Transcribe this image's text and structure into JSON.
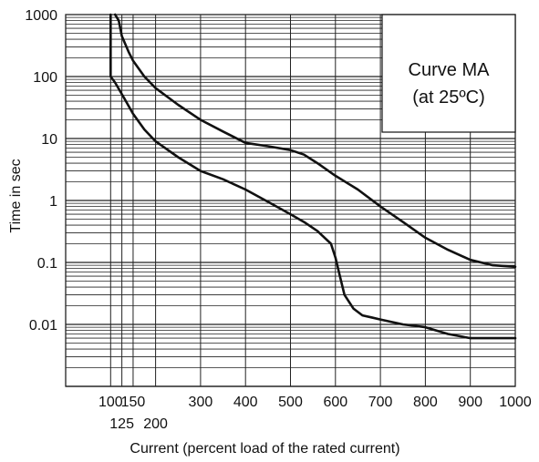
{
  "chart_data": {
    "type": "line",
    "xlabel": "Current (percent load of the rated current)",
    "ylabel": "Time in sec",
    "xlim": [
      0,
      1000
    ],
    "ylim": [
      0.001,
      1000
    ],
    "yscale": "log",
    "annotation": [
      "Curve MA",
      "(at 25ºC)"
    ],
    "x_ticks": [
      {
        "value": 100,
        "label": "100",
        "row": 1
      },
      {
        "value": 125,
        "label": "125",
        "row": 2
      },
      {
        "value": 150,
        "label": "150",
        "row": 1
      },
      {
        "value": 200,
        "label": "200",
        "row": 2
      },
      {
        "value": 300,
        "label": "300",
        "row": 1
      },
      {
        "value": 400,
        "label": "400",
        "row": 1
      },
      {
        "value": 500,
        "label": "500",
        "row": 1
      },
      {
        "value": 600,
        "label": "600",
        "row": 1
      },
      {
        "value": 700,
        "label": "700",
        "row": 1
      },
      {
        "value": 800,
        "label": "800",
        "row": 1
      },
      {
        "value": 900,
        "label": "900",
        "row": 1
      },
      {
        "value": 1000,
        "label": "1000",
        "row": 1
      }
    ],
    "y_ticks": [
      {
        "value": 1000,
        "label": "1000"
      },
      {
        "value": 100,
        "label": "100"
      },
      {
        "value": 10,
        "label": "10"
      },
      {
        "value": 1,
        "label": "1"
      },
      {
        "value": 0.1,
        "label": "0.1"
      },
      {
        "value": 0.01,
        "label": "0.01"
      }
    ],
    "grid": true,
    "series": [
      {
        "name": "",
        "x": [
          100,
          100,
          110,
          130,
          150,
          175,
          200,
          250,
          300,
          350,
          400,
          450,
          500,
          530,
          560,
          590,
          600,
          610,
          620,
          640,
          660,
          680,
          700,
          750,
          800,
          850,
          900,
          950,
          1000
        ],
        "y": [
          1000,
          100,
          80,
          45,
          25,
          14,
          9,
          5,
          3,
          2.2,
          1.5,
          0.95,
          0.6,
          0.45,
          0.32,
          0.2,
          0.12,
          0.06,
          0.03,
          0.018,
          0.014,
          0.013,
          0.012,
          0.01,
          0.009,
          0.007,
          0.006,
          0.006,
          0.006
        ]
      },
      {
        "name": "",
        "x": [
          110,
          118,
          125,
          140,
          150,
          175,
          200,
          250,
          300,
          350,
          400,
          450,
          500,
          530,
          560,
          600,
          650,
          700,
          750,
          800,
          850,
          900,
          950,
          1000
        ],
        "y": [
          1000,
          800,
          450,
          250,
          180,
          100,
          65,
          35,
          20,
          13,
          8.5,
          7.5,
          6.5,
          5.5,
          4,
          2.5,
          1.5,
          0.8,
          0.45,
          0.25,
          0.16,
          0.11,
          0.09,
          0.085
        ]
      }
    ],
    "annotation_box": {
      "anchor": "top-right"
    },
    "colors": {
      "line": "#111111",
      "grid": "#222222",
      "background": "#ffffff"
    }
  }
}
